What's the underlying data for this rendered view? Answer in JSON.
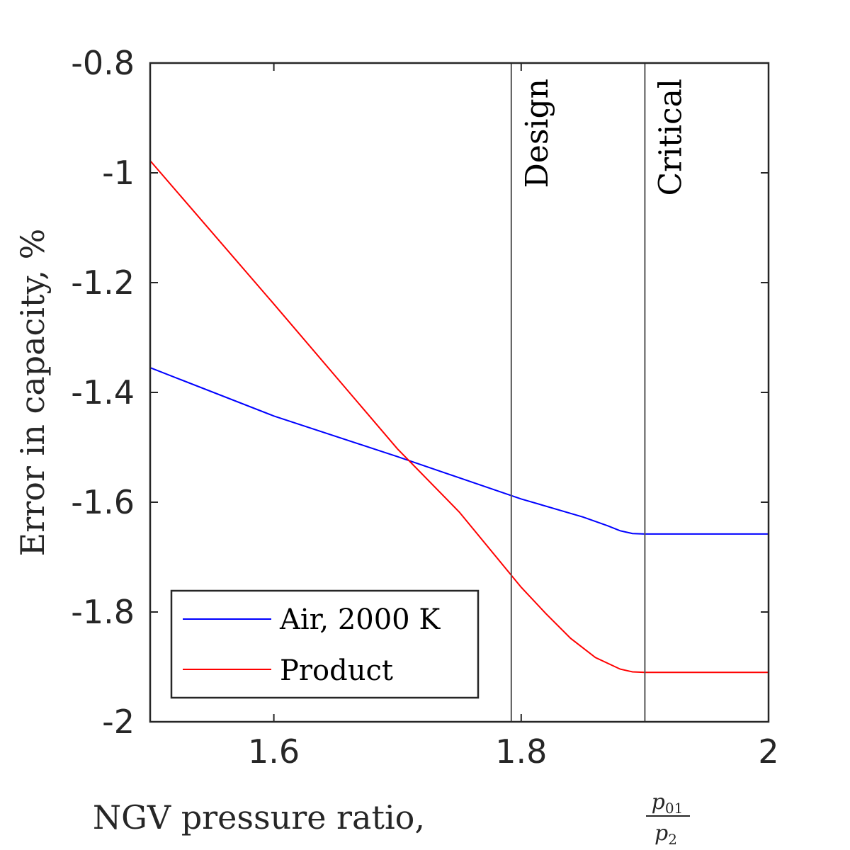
{
  "chart_data": {
    "type": "line",
    "xlabel": "NGV pressure ratio,",
    "xlabel_fraction": {
      "numerator": "p",
      "numerator_sub": "01",
      "denominator": "p",
      "denominator_sub": "2"
    },
    "ylabel": "Error in capacity, %",
    "xlim": [
      1.5,
      2.0
    ],
    "ylim": [
      -2.0,
      -0.8
    ],
    "xticks": [
      1.6,
      1.8,
      2.0
    ],
    "xtick_labels": [
      "1.6",
      "1.8",
      "2"
    ],
    "yticks": [
      -0.8,
      -1.0,
      -1.2,
      -1.4,
      -1.6,
      -1.8,
      -2.0
    ],
    "ytick_labels": [
      "-0.8",
      "-1",
      "-1.2",
      "-1.4",
      "-1.6",
      "-1.8",
      "-2"
    ],
    "grid": false,
    "legend_position": "bottom-left",
    "series": [
      {
        "name": "Air, 2000 K",
        "color": "#0000ff",
        "x": [
          1.5,
          1.6,
          1.7,
          1.8,
          1.85,
          1.87,
          1.88,
          1.89,
          1.9,
          1.95,
          2.0
        ],
        "y": [
          -1.355,
          -1.443,
          -1.517,
          -1.594,
          -1.627,
          -1.643,
          -1.652,
          -1.657,
          -1.658,
          -1.658,
          -1.658
        ]
      },
      {
        "name": "Product",
        "color": "#ff0000",
        "x": [
          1.5,
          1.6,
          1.7,
          1.75,
          1.8,
          1.82,
          1.84,
          1.86,
          1.88,
          1.89,
          1.9,
          1.95,
          2.0
        ],
        "y": [
          -0.978,
          -1.239,
          -1.503,
          -1.618,
          -1.755,
          -1.803,
          -1.848,
          -1.883,
          -1.904,
          -1.909,
          -1.91,
          -1.91,
          -1.91
        ]
      }
    ],
    "vertical_lines": [
      {
        "x": 1.792,
        "label": "Design",
        "color": "#555555"
      },
      {
        "x": 1.9,
        "label": "Critical",
        "color": "#555555"
      }
    ]
  }
}
